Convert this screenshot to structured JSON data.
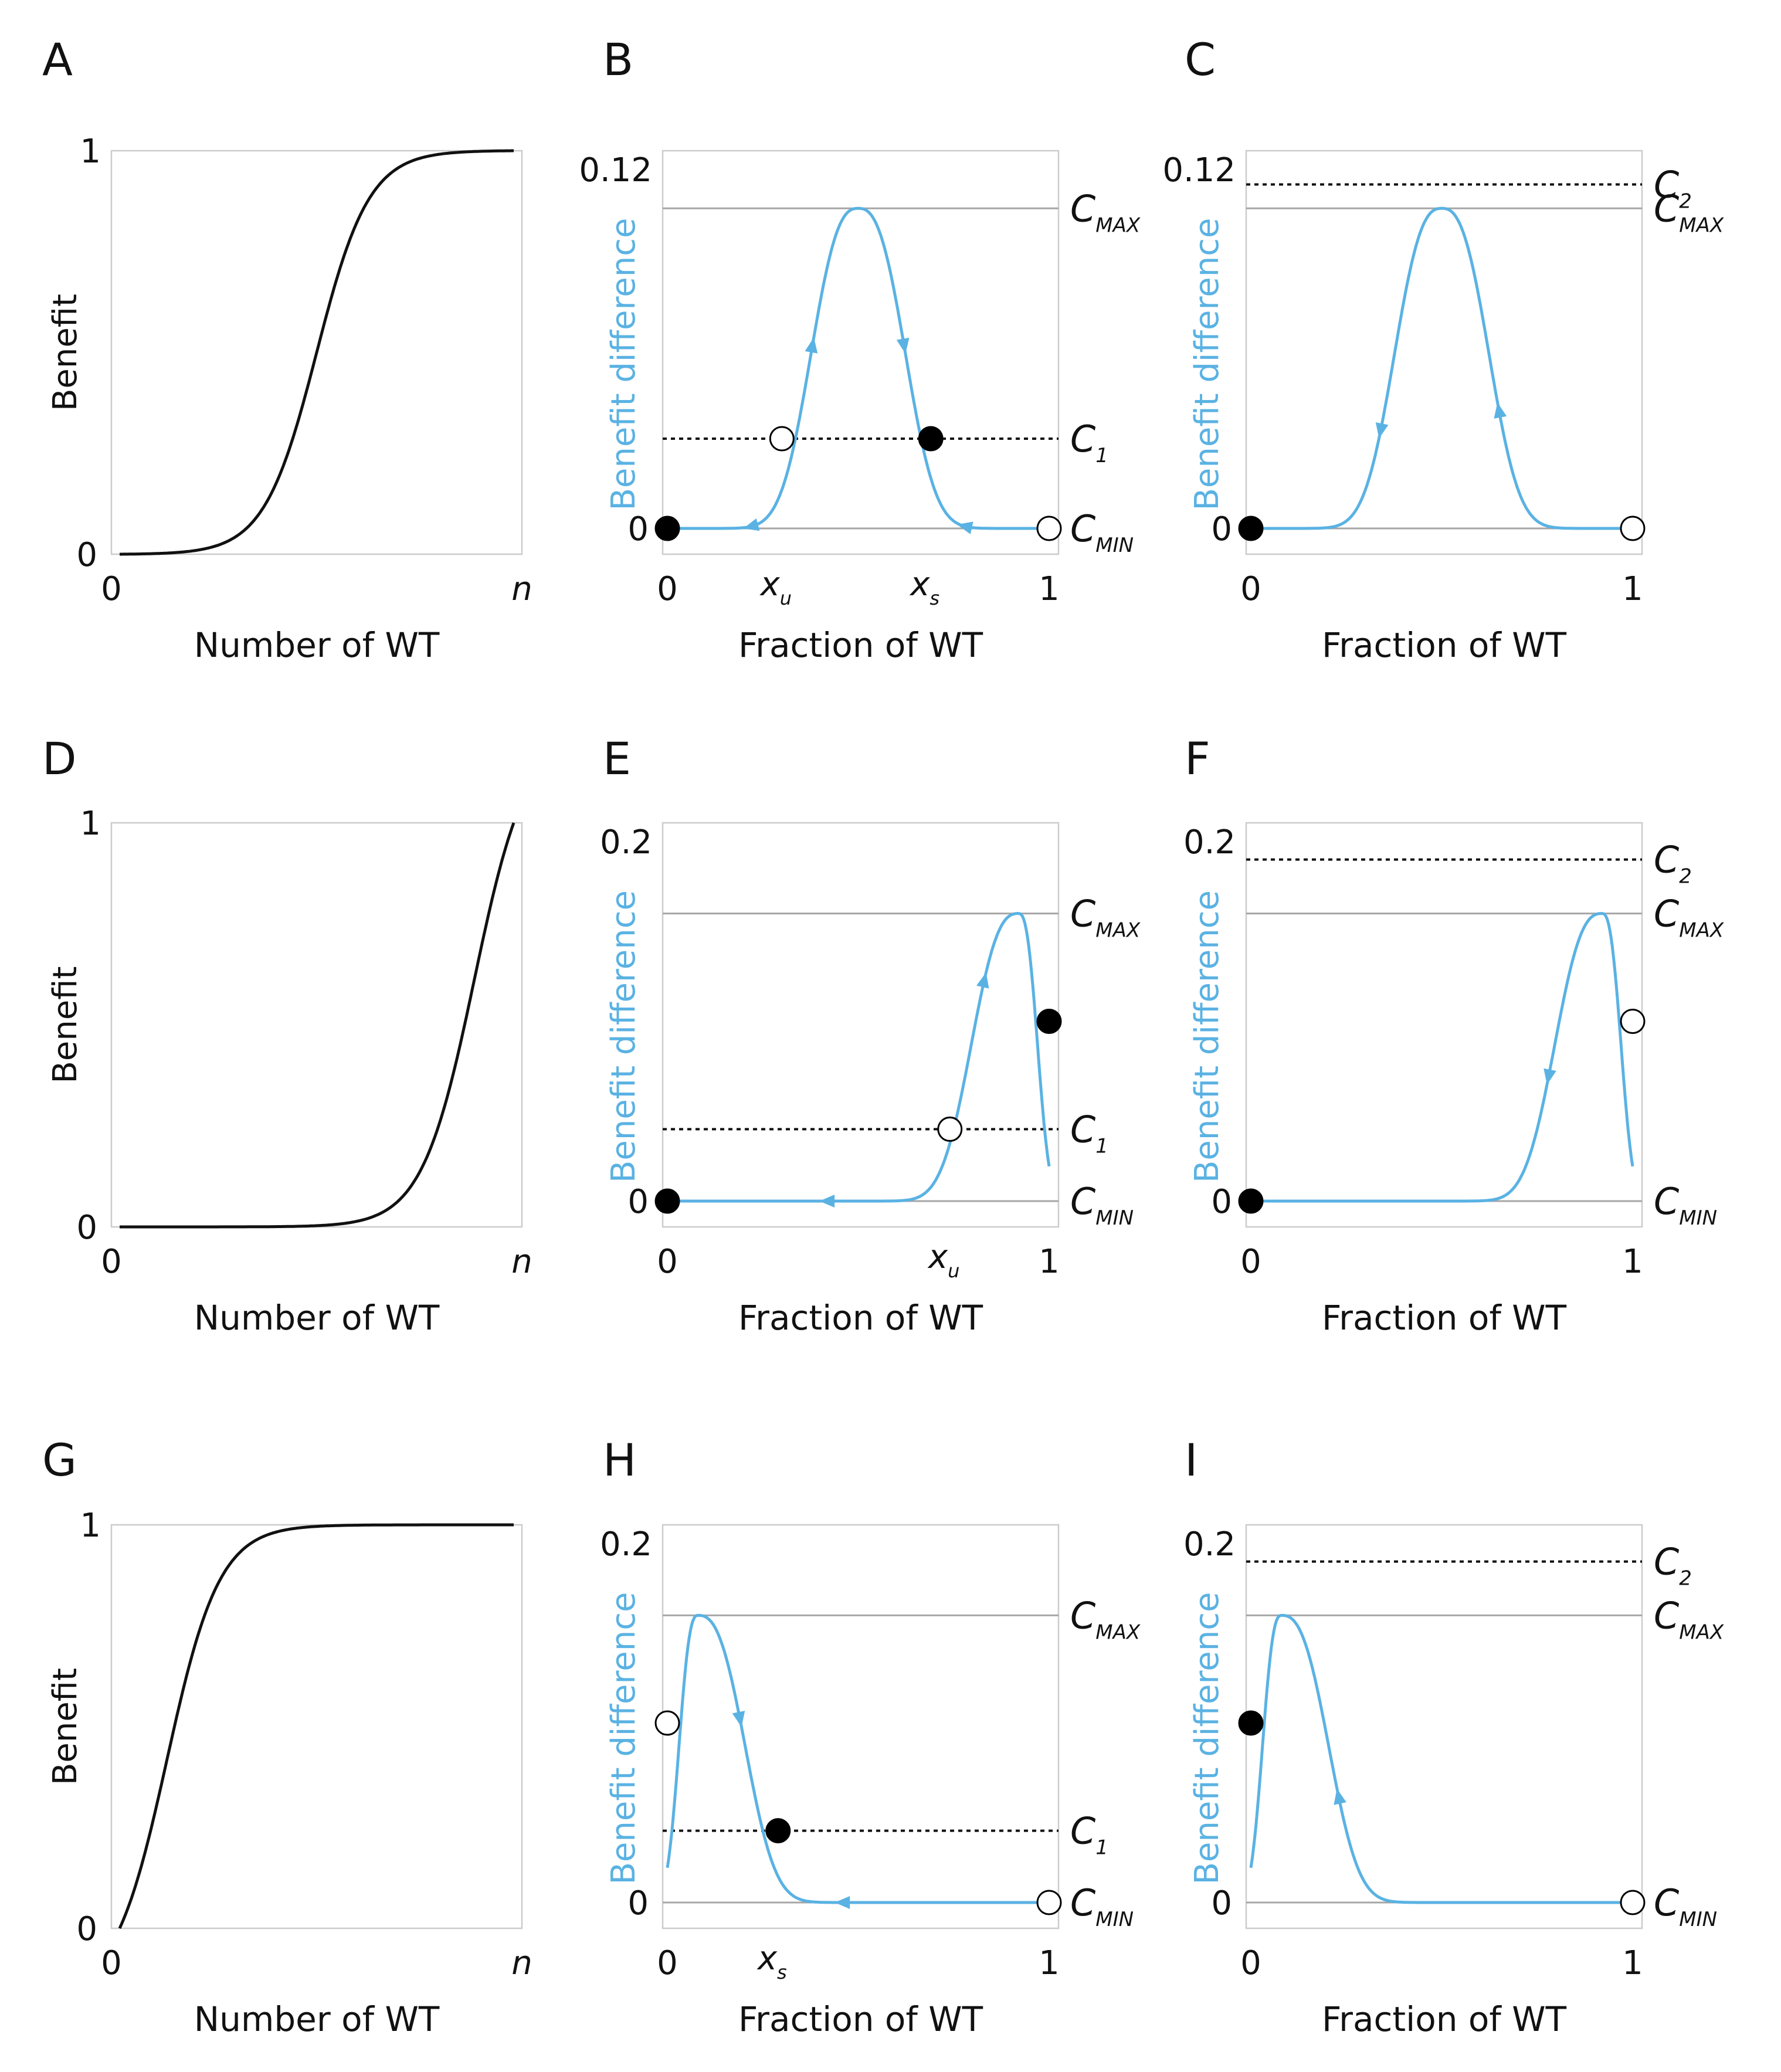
{
  "colors": {
    "curve_blue": "#5ab2e3",
    "black_curve": "#111111",
    "frame": "#cccccc",
    "hline_gray": "#a6a6a6"
  },
  "chart_data": [
    {
      "id": "A",
      "type": "line",
      "xlabel": "Number of WT",
      "ylabel": "Benefit",
      "xticks": [
        "0",
        "n"
      ],
      "yticks": [
        "0",
        "1"
      ],
      "ylim": [
        0,
        1
      ],
      "curve": {
        "kind": "sigmoid",
        "center": 0.5,
        "steepness": 15
      }
    },
    {
      "id": "B",
      "type": "line",
      "xlabel": "Fraction of WT",
      "ylabel": "Benefit difference",
      "xticks": [
        "0",
        "1"
      ],
      "yticks": [
        "0",
        "0.12"
      ],
      "ylim": [
        0,
        0.12
      ],
      "xlim": [
        0,
        1
      ],
      "curve": {
        "kind": "bump",
        "peak_x": 0.5,
        "peak_y": 0.107,
        "left_width": 0.15,
        "right_width": 0.15
      },
      "hlines": [
        {
          "y": 0.107,
          "style": "solid",
          "label": "C",
          "sub": "MAX"
        },
        {
          "y": 0.03,
          "style": "dotted",
          "label": "C",
          "sub": "1"
        },
        {
          "y": 0.0,
          "style": "solid",
          "label": "C",
          "sub": "MIN"
        }
      ],
      "points": [
        {
          "x": 0.0,
          "y": 0.0,
          "filled": true
        },
        {
          "x": 0.3,
          "y": 0.03,
          "filled": false
        },
        {
          "x": 0.69,
          "y": 0.03,
          "filled": true
        },
        {
          "x": 1.0,
          "y": 0.0,
          "filled": false
        }
      ],
      "arrows": [
        {
          "x": 0.38,
          "dir": "up"
        },
        {
          "x": 0.62,
          "dir": "down"
        },
        {
          "x": 0.22,
          "dir": "down"
        },
        {
          "x": 0.78,
          "dir": "up"
        }
      ],
      "xmarks": [
        {
          "x": 0.3,
          "label": "x",
          "sub": "u"
        },
        {
          "x": 0.69,
          "label": "x",
          "sub": "s"
        }
      ]
    },
    {
      "id": "C",
      "type": "line",
      "xlabel": "Fraction of WT",
      "ylabel": "Benefit difference",
      "xticks": [
        "0",
        "1"
      ],
      "yticks": [
        "0",
        "0.12"
      ],
      "ylim": [
        0,
        0.12
      ],
      "xlim": [
        0,
        1
      ],
      "curve": {
        "kind": "bump",
        "peak_x": 0.5,
        "peak_y": 0.107,
        "left_width": 0.15,
        "right_width": 0.15
      },
      "hlines": [
        {
          "y": 0.115,
          "style": "dotted",
          "label": "C",
          "sub": "2"
        },
        {
          "y": 0.107,
          "style": "solid",
          "label": "C",
          "sub": "MAX"
        },
        {
          "y": 0.0,
          "style": "solid",
          "label": "",
          "sub": ""
        }
      ],
      "points": [
        {
          "x": 0.0,
          "y": 0.0,
          "filled": true
        },
        {
          "x": 1.0,
          "y": 0.0,
          "filled": false
        }
      ],
      "arrows": [
        {
          "x": 0.34,
          "dir": "down"
        },
        {
          "x": 0.65,
          "dir": "up"
        }
      ],
      "xmarks": []
    },
    {
      "id": "D",
      "type": "line",
      "xlabel": "Number of WT",
      "ylabel": "Benefit",
      "xticks": [
        "0",
        "n"
      ],
      "yticks": [
        "0",
        "1"
      ],
      "ylim": [
        0,
        1
      ],
      "curve": {
        "kind": "sigmoid",
        "center": 0.9,
        "steepness": 15
      }
    },
    {
      "id": "E",
      "type": "line",
      "xlabel": "Fraction of WT",
      "ylabel": "Benefit difference",
      "xticks": [
        "0",
        "1"
      ],
      "yticks": [
        "0",
        "0.2"
      ],
      "ylim": [
        0,
        0.2
      ],
      "xlim": [
        0,
        1
      ],
      "curve": {
        "kind": "bump",
        "peak_x": 0.92,
        "peak_y": 0.16,
        "left_width": 0.15,
        "right_width": 0.06
      },
      "hlines": [
        {
          "y": 0.16,
          "style": "solid",
          "label": "C",
          "sub": "MAX"
        },
        {
          "y": 0.04,
          "style": "dotted",
          "label": "C",
          "sub": "1"
        },
        {
          "y": 0.0,
          "style": "solid",
          "label": "C",
          "sub": "MIN"
        }
      ],
      "points": [
        {
          "x": 0.0,
          "y": 0.0,
          "filled": true
        },
        {
          "x": 0.74,
          "y": 0.04,
          "filled": false
        },
        {
          "x": 1.0,
          "y": 0.1,
          "filled": true
        }
      ],
      "arrows": [
        {
          "x": 0.42,
          "dir": "left"
        },
        {
          "x": 0.83,
          "dir": "up"
        }
      ],
      "xmarks": [
        {
          "x": 0.74,
          "label": "x",
          "sub": "u"
        }
      ]
    },
    {
      "id": "F",
      "type": "line",
      "xlabel": "Fraction of WT",
      "ylabel": "Benefit difference",
      "xticks": [
        "0",
        "1"
      ],
      "yticks": [
        "0",
        "0.2"
      ],
      "ylim": [
        0,
        0.2
      ],
      "xlim": [
        0,
        1
      ],
      "curve": {
        "kind": "bump",
        "peak_x": 0.92,
        "peak_y": 0.16,
        "left_width": 0.15,
        "right_width": 0.06
      },
      "hlines": [
        {
          "y": 0.19,
          "style": "dotted",
          "label": "C",
          "sub": "2"
        },
        {
          "y": 0.16,
          "style": "solid",
          "label": "C",
          "sub": "MAX"
        },
        {
          "y": 0.0,
          "style": "solid",
          "label": "C",
          "sub": "MIN"
        }
      ],
      "points": [
        {
          "x": 0.0,
          "y": 0.0,
          "filled": true
        },
        {
          "x": 1.0,
          "y": 0.1,
          "filled": false
        }
      ],
      "arrows": [
        {
          "x": 0.78,
          "dir": "down"
        }
      ],
      "xmarks": []
    },
    {
      "id": "G",
      "type": "line",
      "xlabel": "Number of WT",
      "ylabel": "Benefit",
      "xticks": [
        "0",
        "n"
      ],
      "yticks": [
        "0",
        "1"
      ],
      "ylim": [
        0,
        1
      ],
      "curve": {
        "kind": "sigmoid",
        "center": 0.12,
        "steepness": 15
      }
    },
    {
      "id": "H",
      "type": "line",
      "xlabel": "Fraction of WT",
      "ylabel": "Benefit difference",
      "xticks": [
        "0",
        "1"
      ],
      "yticks": [
        "0",
        "0.2"
      ],
      "ylim": [
        0,
        0.2
      ],
      "xlim": [
        0,
        1
      ],
      "curve": {
        "kind": "bump",
        "peak_x": 0.08,
        "peak_y": 0.16,
        "left_width": 0.06,
        "right_width": 0.15
      },
      "hlines": [
        {
          "y": 0.16,
          "style": "solid",
          "label": "C",
          "sub": "MAX"
        },
        {
          "y": 0.04,
          "style": "dotted",
          "label": "C",
          "sub": "1"
        },
        {
          "y": 0.0,
          "style": "solid",
          "label": "C",
          "sub": "MIN"
        }
      ],
      "points": [
        {
          "x": 0.0,
          "y": 0.1,
          "filled": false
        },
        {
          "x": 0.29,
          "y": 0.04,
          "filled": true
        },
        {
          "x": 1.0,
          "y": 0.0,
          "filled": false
        }
      ],
      "arrows": [
        {
          "x": 0.19,
          "dir": "down"
        },
        {
          "x": 0.46,
          "dir": "left"
        }
      ],
      "xmarks": [
        {
          "x": 0.29,
          "label": "x",
          "sub": "s"
        }
      ]
    },
    {
      "id": "I",
      "type": "line",
      "xlabel": "Fraction of WT",
      "ylabel": "Benefit difference",
      "xticks": [
        "0",
        "1"
      ],
      "yticks": [
        "0",
        "0.2"
      ],
      "ylim": [
        0,
        0.2
      ],
      "xlim": [
        0,
        1
      ],
      "curve": {
        "kind": "bump",
        "peak_x": 0.08,
        "peak_y": 0.16,
        "left_width": 0.06,
        "right_width": 0.15
      },
      "hlines": [
        {
          "y": 0.19,
          "style": "dotted",
          "label": "C",
          "sub": "2"
        },
        {
          "y": 0.16,
          "style": "solid",
          "label": "C",
          "sub": "MAX"
        },
        {
          "y": 0.0,
          "style": "solid",
          "label": "C",
          "sub": "MIN"
        }
      ],
      "points": [
        {
          "x": 0.0,
          "y": 0.1,
          "filled": true
        },
        {
          "x": 1.0,
          "y": 0.0,
          "filled": false
        }
      ],
      "arrows": [
        {
          "x": 0.23,
          "dir": "up"
        }
      ],
      "xmarks": []
    }
  ]
}
